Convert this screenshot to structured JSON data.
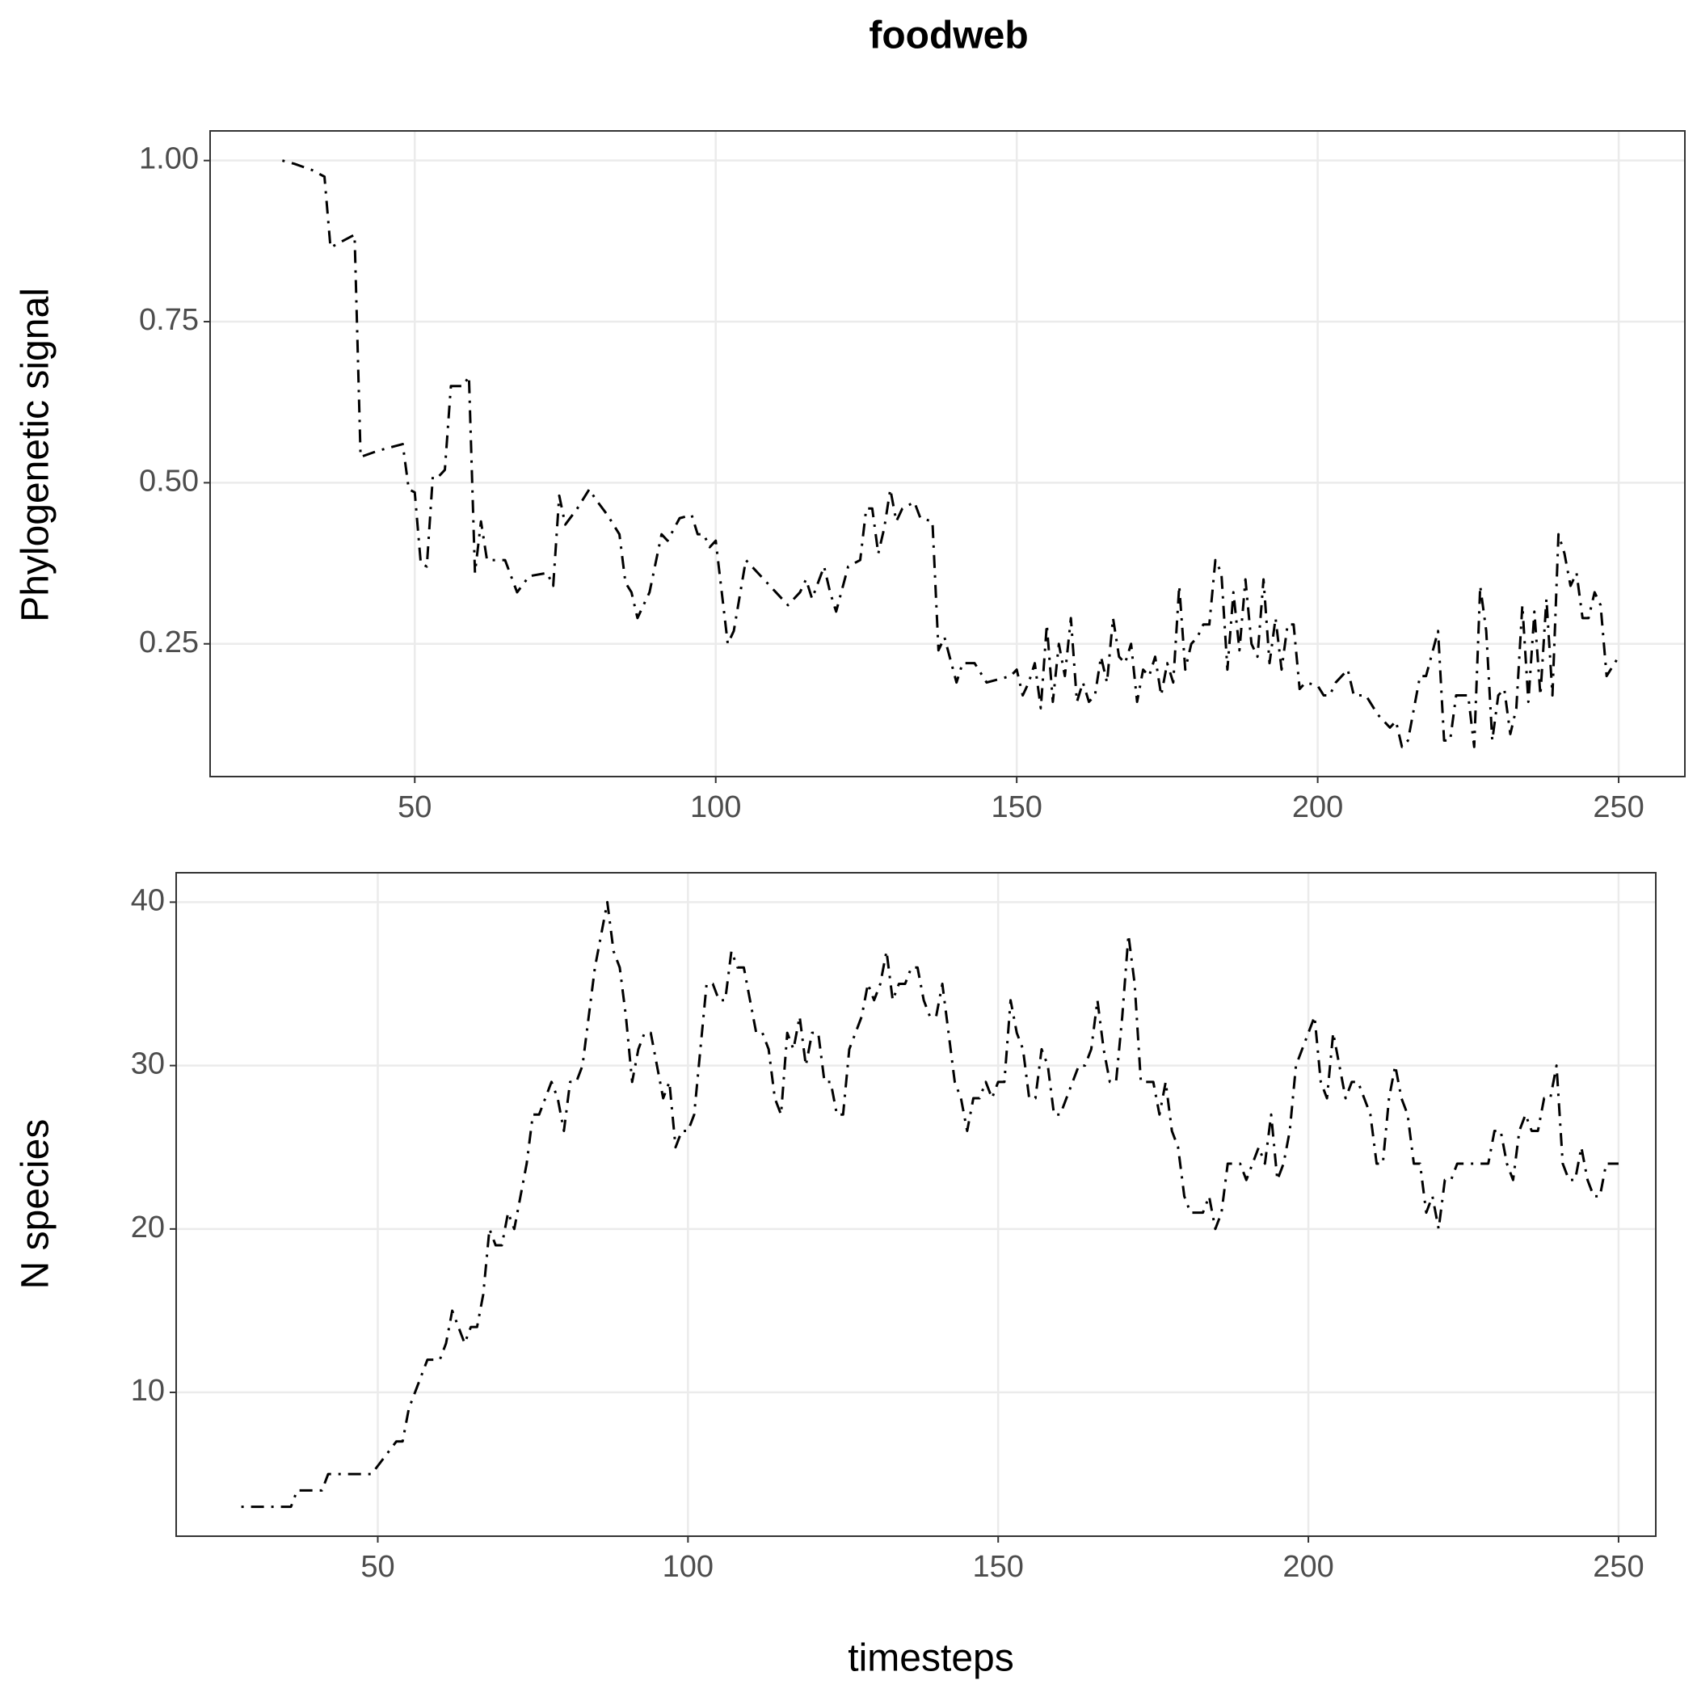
{
  "chart_data": [
    {
      "type": "line",
      "title": "foodweb",
      "ylabel": "Phylogenetic signal",
      "color": "#000000",
      "line_dash": "dotdash",
      "grid": true,
      "xlim": [
        16,
        261
      ],
      "xticks": [
        50,
        100,
        150,
        200,
        250
      ],
      "ylim": [
        0.044,
        1.046
      ],
      "yticks": [
        0.25,
        {
          "value": 0.5,
          "label": "0.50"
        },
        0.75,
        {
          "value": 1,
          "label": "1.00"
        }
      ],
      "x": [
        28,
        30,
        33,
        35,
        36,
        38,
        40,
        41,
        44,
        48,
        49,
        50,
        51,
        52,
        53,
        54,
        55,
        56,
        58,
        59,
        60,
        61,
        62,
        63,
        65,
        67,
        69,
        72,
        73,
        74,
        75,
        77,
        79,
        80,
        82,
        84,
        85,
        86,
        87,
        89,
        91,
        92,
        94,
        96,
        97,
        98,
        99,
        100,
        102,
        103,
        105,
        107,
        110,
        112,
        114,
        115,
        116,
        118,
        119,
        120,
        122,
        124,
        125,
        126,
        127,
        128,
        129,
        130,
        131,
        133,
        134,
        136,
        137,
        138,
        140,
        141,
        143,
        145,
        147,
        149,
        150,
        151,
        152,
        153,
        154,
        155,
        156,
        157,
        158,
        159,
        160,
        161,
        162,
        163,
        164,
        165,
        166,
        167,
        168,
        169,
        170,
        171,
        172,
        173,
        174,
        175,
        176,
        177,
        178,
        179,
        180,
        181,
        182,
        183,
        184,
        185,
        186,
        187,
        188,
        189,
        190,
        191,
        192,
        193,
        194,
        195,
        196,
        197,
        198,
        200,
        201,
        202,
        203,
        205,
        206,
        208,
        210,
        212,
        213,
        214,
        215,
        217,
        218,
        220,
        221,
        222,
        223,
        224,
        225,
        226,
        227,
        228,
        229,
        230,
        231,
        232,
        233,
        234,
        235,
        236,
        237,
        238,
        239,
        240,
        241,
        242,
        243,
        244,
        245,
        246,
        247,
        248,
        250
      ],
      "values": [
        1.0,
        0.995,
        0.985,
        0.975,
        0.865,
        0.875,
        0.885,
        0.54,
        0.55,
        0.56,
        0.49,
        0.485,
        0.375,
        0.37,
        0.51,
        0.51,
        0.52,
        0.65,
        0.65,
        0.665,
        0.36,
        0.44,
        0.38,
        0.38,
        0.38,
        0.33,
        0.355,
        0.36,
        0.34,
        0.48,
        0.435,
        0.46,
        0.49,
        0.475,
        0.45,
        0.42,
        0.345,
        0.33,
        0.29,
        0.33,
        0.42,
        0.41,
        0.445,
        0.45,
        0.42,
        0.42,
        0.4,
        0.41,
        0.25,
        0.27,
        0.38,
        0.36,
        0.33,
        0.31,
        0.33,
        0.35,
        0.32,
        0.37,
        0.33,
        0.3,
        0.37,
        0.38,
        0.46,
        0.46,
        0.39,
        0.43,
        0.49,
        0.44,
        0.46,
        0.47,
        0.445,
        0.44,
        0.24,
        0.26,
        0.19,
        0.22,
        0.22,
        0.19,
        0.195,
        0.2,
        0.21,
        0.17,
        0.19,
        0.22,
        0.15,
        0.28,
        0.16,
        0.25,
        0.2,
        0.29,
        0.16,
        0.19,
        0.16,
        0.17,
        0.23,
        0.19,
        0.29,
        0.23,
        0.22,
        0.25,
        0.16,
        0.21,
        0.2,
        0.23,
        0.17,
        0.22,
        0.19,
        0.34,
        0.21,
        0.25,
        0.26,
        0.28,
        0.28,
        0.38,
        0.36,
        0.21,
        0.33,
        0.24,
        0.35,
        0.25,
        0.23,
        0.35,
        0.22,
        0.29,
        0.21,
        0.28,
        0.28,
        0.18,
        0.19,
        0.185,
        0.17,
        0.17,
        0.19,
        0.21,
        0.17,
        0.17,
        0.14,
        0.12,
        0.13,
        0.09,
        0.1,
        0.2,
        0.2,
        0.27,
        0.1,
        0.1,
        0.17,
        0.17,
        0.17,
        0.09,
        0.34,
        0.27,
        0.1,
        0.17,
        0.18,
        0.11,
        0.15,
        0.31,
        0.16,
        0.3,
        0.17,
        0.32,
        0.17,
        0.42,
        0.39,
        0.34,
        0.36,
        0.29,
        0.29,
        0.33,
        0.31,
        0.2,
        0.23
      ]
    },
    {
      "type": "line",
      "ylabel": "N species",
      "xlabel": "timesteps",
      "color": "#000000",
      "line_dash": "dotdash",
      "grid": true,
      "xlim": [
        17.5,
        256
      ],
      "xticks": [
        50,
        100,
        150,
        200,
        250
      ],
      "ylim": [
        1.2,
        41.8
      ],
      "yticks": [
        10,
        20,
        30,
        40
      ],
      "x": [
        28,
        32,
        36,
        37,
        41,
        42,
        46,
        49,
        51,
        52,
        53,
        54,
        55,
        56,
        58,
        60,
        61,
        62,
        63,
        64,
        65,
        66,
        67,
        68,
        69,
        70,
        71,
        72,
        73,
        74,
        75,
        76,
        77,
        78,
        79,
        80,
        81,
        82,
        83,
        85,
        86,
        87,
        88,
        89,
        90,
        91,
        92,
        93,
        94,
        95,
        96,
        97,
        98,
        99,
        100,
        101,
        102,
        103,
        104,
        105,
        106,
        107,
        108,
        109,
        110,
        111,
        112,
        113,
        114,
        115,
        116,
        117,
        118,
        119,
        120,
        121,
        122,
        123,
        124,
        125,
        126,
        127,
        128,
        129,
        130,
        131,
        132,
        133,
        134,
        135,
        136,
        137,
        138,
        139,
        140,
        141,
        142,
        143,
        144,
        145,
        146,
        147,
        148,
        149,
        150,
        151,
        152,
        153,
        154,
        155,
        156,
        157,
        158,
        159,
        160,
        161,
        162,
        163,
        164,
        165,
        166,
        167,
        168,
        169,
        170,
        171,
        172,
        173,
        174,
        175,
        176,
        177,
        178,
        179,
        180,
        181,
        182,
        183,
        184,
        185,
        186,
        187,
        188,
        189,
        190,
        191,
        192,
        193,
        194,
        195,
        196,
        197,
        198,
        199,
        200,
        201,
        202,
        203,
        204,
        205,
        206,
        207,
        208,
        209,
        210,
        211,
        212,
        213,
        214,
        215,
        216,
        217,
        218,
        219,
        220,
        221,
        222,
        223,
        224,
        225,
        226,
        227,
        228,
        229,
        230,
        231,
        232,
        233,
        234,
        235,
        236,
        237,
        238,
        239,
        240,
        241,
        242,
        243,
        244,
        245,
        246,
        247,
        248,
        249,
        250
      ],
      "values": [
        3,
        3,
        3,
        4,
        4,
        5,
        5,
        5,
        6,
        6.5,
        7,
        7,
        9,
        10,
        12,
        12,
        13,
        15,
        14,
        13,
        14,
        14,
        16,
        20,
        19,
        19,
        21,
        20,
        22,
        24,
        27,
        27,
        28,
        29,
        28,
        26,
        29,
        29,
        30,
        36,
        38,
        40,
        37,
        36,
        33,
        29,
        31,
        32,
        32,
        30,
        28,
        29,
        25,
        26,
        26,
        27,
        31,
        35,
        35,
        34,
        34,
        37,
        36,
        36,
        34,
        32,
        32,
        31,
        28,
        27,
        32,
        31,
        33,
        30,
        32,
        32,
        29,
        29,
        27,
        27,
        31,
        32,
        33,
        35,
        34,
        35,
        37,
        34,
        35,
        35,
        36,
        36,
        34,
        33,
        33,
        35,
        32,
        29,
        28,
        26,
        28,
        28,
        29,
        28,
        29,
        29,
        34,
        32,
        31,
        28,
        28,
        31,
        30,
        27,
        27,
        28,
        29,
        30,
        30,
        31,
        34,
        31,
        29,
        29,
        33,
        38,
        35,
        29,
        29,
        29,
        27,
        29,
        26,
        25,
        22,
        21,
        21,
        21,
        22,
        20,
        21,
        24,
        24,
        24,
        23,
        24,
        25,
        24,
        27,
        23,
        24,
        26,
        30,
        31,
        32,
        33,
        29,
        28,
        32,
        30,
        28,
        29,
        29,
        28,
        27,
        24,
        24,
        28,
        30,
        28,
        27,
        24,
        24,
        21,
        22,
        20,
        23,
        23,
        24,
        24,
        24,
        24,
        24,
        24,
        26,
        26,
        24,
        23,
        26,
        27,
        26,
        26,
        28,
        28,
        30,
        24,
        23,
        23,
        25,
        23,
        22,
        22,
        24,
        24,
        24
      ]
    }
  ]
}
